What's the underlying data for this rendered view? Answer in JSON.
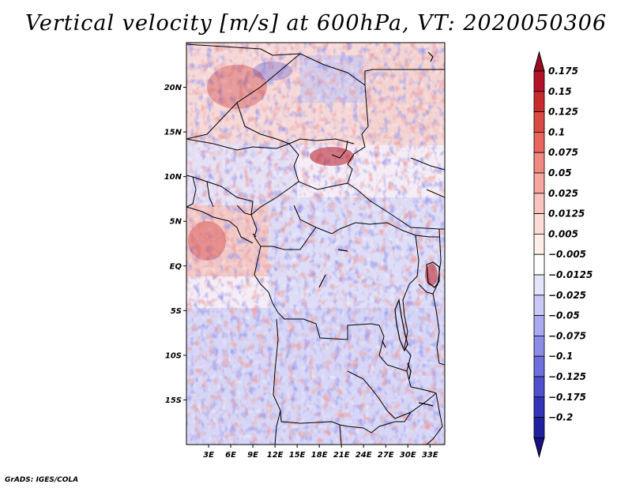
{
  "title": "Vertical velocity [m/s] at 600hPa, VT: 2020050306",
  "credit": "GrADS: IGES/COLA",
  "map": {
    "lat_range": [
      -20,
      25
    ],
    "lon_range": [
      0,
      35
    ],
    "lat_ticks": [
      {
        "value": 20,
        "label": "20N"
      },
      {
        "value": 15,
        "label": "15N"
      },
      {
        "value": 10,
        "label": "10N"
      },
      {
        "value": 5,
        "label": "5N"
      },
      {
        "value": 0,
        "label": "EQ"
      },
      {
        "value": -5,
        "label": "5S"
      },
      {
        "value": -10,
        "label": "10S"
      },
      {
        "value": -15,
        "label": "15S"
      }
    ],
    "lon_ticks": [
      {
        "value": 3,
        "label": "3E"
      },
      {
        "value": 6,
        "label": "6E"
      },
      {
        "value": 9,
        "label": "9E"
      },
      {
        "value": 12,
        "label": "12E"
      },
      {
        "value": 15,
        "label": "15E"
      },
      {
        "value": 18,
        "label": "18E"
      },
      {
        "value": 21,
        "label": "21E"
      },
      {
        "value": 24,
        "label": "24E"
      },
      {
        "value": 27,
        "label": "27E"
      },
      {
        "value": 30,
        "label": "30E"
      },
      {
        "value": 33,
        "label": "33E"
      }
    ]
  },
  "colorbar": {
    "levels": [
      {
        "label": "0.175",
        "color": "#b5122a"
      },
      {
        "label": "0.15",
        "color": "#c92a2e"
      },
      {
        "label": "0.125",
        "color": "#dc4a44"
      },
      {
        "label": "0.1",
        "color": "#e8665e"
      },
      {
        "label": "0.075",
        "color": "#f08a80"
      },
      {
        "label": "0.05",
        "color": "#f5a8a0"
      },
      {
        "label": "0.025",
        "color": "#f9c4bd"
      },
      {
        "label": "0.0125",
        "color": "#fcdcd7"
      },
      {
        "label": "0.005",
        "color": "#feeeea"
      },
      {
        "label": "−0.005",
        "color": "#ffffff"
      },
      {
        "label": "−0.0125",
        "color": "#e4e4fb"
      },
      {
        "label": "−0.025",
        "color": "#c9c9f6"
      },
      {
        "label": "−0.05",
        "color": "#aaaaf0"
      },
      {
        "label": "−0.075",
        "color": "#8c8ce8"
      },
      {
        "label": "−0.1",
        "color": "#6e6edc"
      },
      {
        "label": "−0.125",
        "color": "#5050cc"
      },
      {
        "label": "−0.175",
        "color": "#3434b8"
      },
      {
        "label": "−0.2",
        "color": "#2020a0"
      }
    ],
    "top_arrow_color": "#9a0c20",
    "bottom_arrow_color": "#18108a"
  }
}
